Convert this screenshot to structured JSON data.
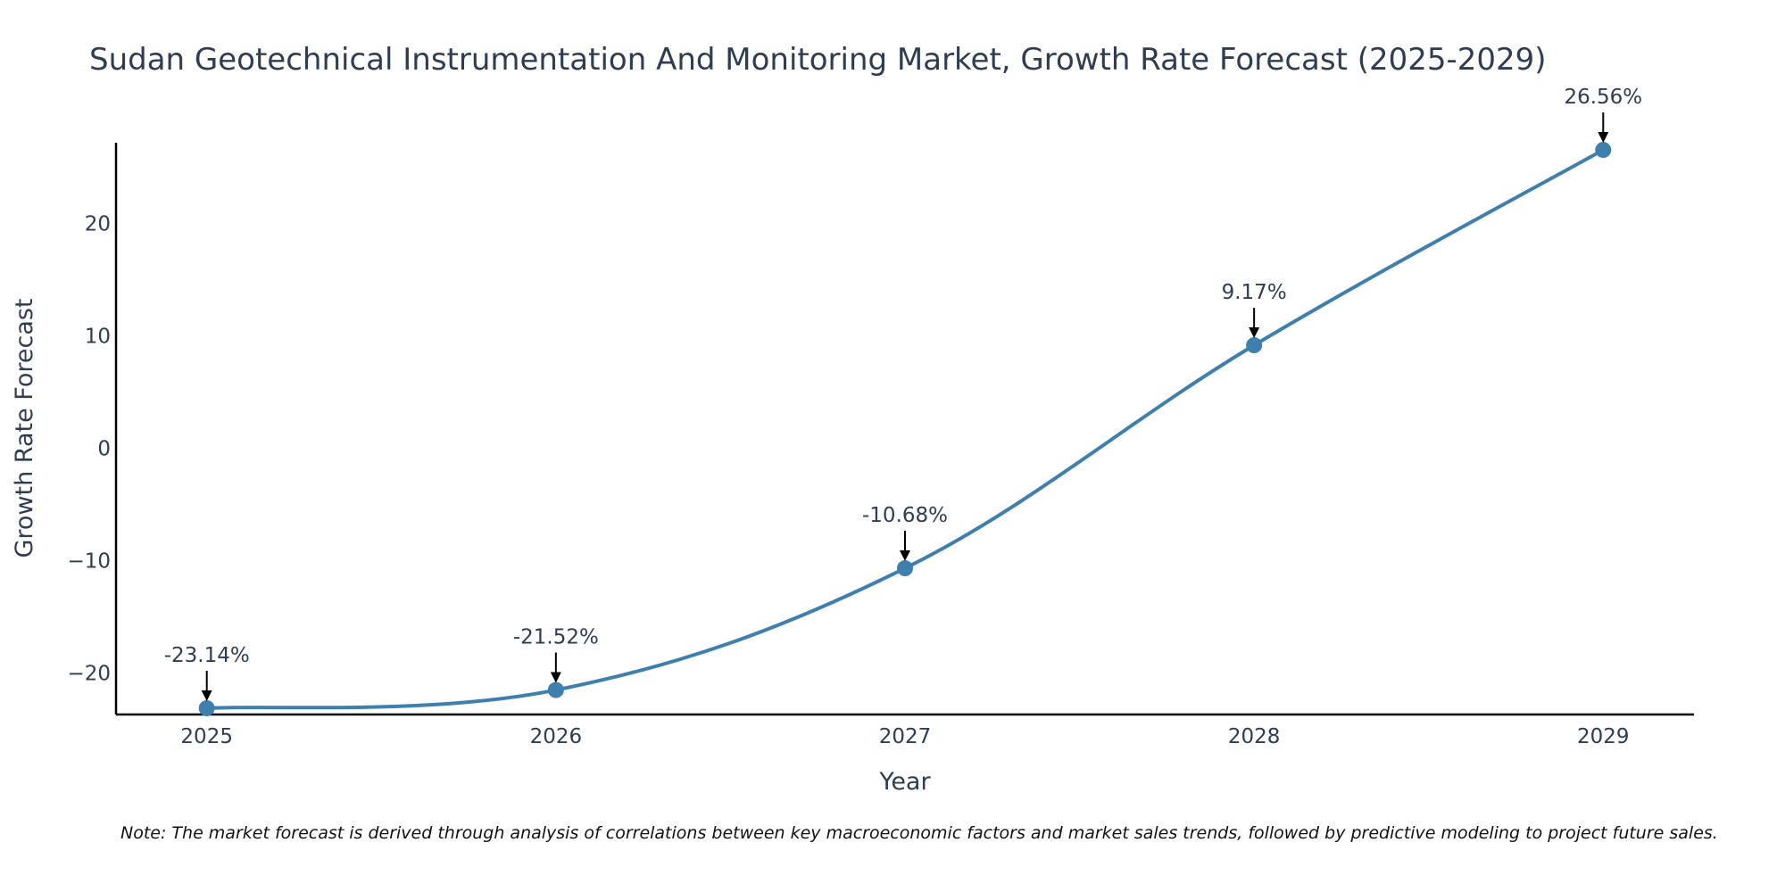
{
  "chart_data": {
    "type": "line",
    "title": "Sudan Geotechnical Instrumentation And Monitoring Market, Growth Rate Forecast (2025-2029)",
    "xlabel": "Year",
    "ylabel": "Growth Rate Forecast",
    "categories": [
      "2025",
      "2026",
      "2027",
      "2028",
      "2029"
    ],
    "x": [
      2025,
      2026,
      2027,
      2028,
      2029
    ],
    "series": [
      {
        "name": "Growth Rate Forecast",
        "values": [
          -23.14,
          -21.52,
          -10.68,
          9.17,
          26.56
        ],
        "labels": [
          "-23.14%",
          "-21.52%",
          "-10.68%",
          "9.17%",
          "26.56%"
        ]
      }
    ],
    "xlim": [
      2024.74,
      2029.26
    ],
    "ylim": [
      -23.7,
      27.2
    ],
    "yticks": [
      -20,
      -10,
      0,
      10,
      20
    ],
    "ytick_labels": [
      "−20",
      "−10",
      "0",
      "10",
      "20"
    ],
    "grid": false,
    "line_color": "#3f7fad",
    "text_color": "#2e3d52",
    "note": "Note: The market forecast is derived through analysis of correlations between key macroeconomic factors and market sales trends, followed by predictive modeling to project future sales."
  }
}
